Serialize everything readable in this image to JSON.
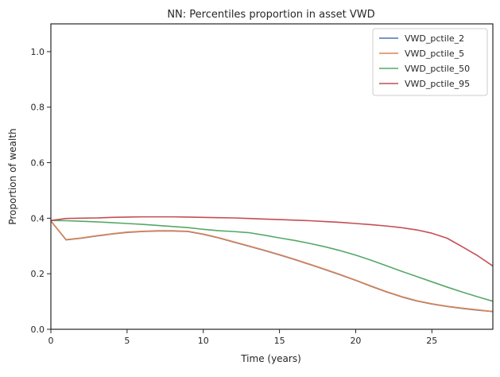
{
  "chart_data": {
    "type": "line",
    "title": "NN: Percentiles proportion in asset VWD",
    "xlabel": "Time (years)",
    "ylabel": "Proportion of wealth",
    "xlim": [
      0,
      29
    ],
    "ylim": [
      0,
      1.1
    ],
    "xticks": [
      0,
      5,
      10,
      15,
      20,
      25
    ],
    "yticks": [
      0.0,
      0.2,
      0.4,
      0.6,
      0.8,
      1.0
    ],
    "xtick_labels": [
      "0",
      "5",
      "10",
      "15",
      "20",
      "25"
    ],
    "ytick_labels": [
      "0.0",
      "0.2",
      "0.4",
      "0.6",
      "0.8",
      "1.0"
    ],
    "grid": false,
    "legend_position": "top-right",
    "x": [
      0,
      1,
      2,
      3,
      4,
      5,
      6,
      7,
      8,
      9,
      10,
      11,
      12,
      13,
      14,
      15,
      16,
      17,
      18,
      19,
      20,
      21,
      22,
      23,
      24,
      25,
      26,
      27,
      28,
      29
    ],
    "series": [
      {
        "name": "VWD_pctile_2",
        "color": "#4c72b0",
        "values": [
          0.39,
          0.322,
          0.328,
          0.336,
          0.343,
          0.349,
          0.352,
          0.354,
          0.354,
          0.352,
          0.342,
          0.329,
          0.314,
          0.299,
          0.284,
          0.268,
          0.251,
          0.233,
          0.215,
          0.196,
          0.176,
          0.155,
          0.135,
          0.117,
          0.102,
          0.091,
          0.082,
          0.075,
          0.069,
          0.064
        ]
      },
      {
        "name": "VWD_pctile_5",
        "color": "#dd8452",
        "values": [
          0.39,
          0.323,
          0.329,
          0.337,
          0.344,
          0.35,
          0.353,
          0.355,
          0.355,
          0.353,
          0.343,
          0.33,
          0.315,
          0.3,
          0.285,
          0.269,
          0.252,
          0.234,
          0.216,
          0.197,
          0.177,
          0.156,
          0.136,
          0.118,
          0.103,
          0.092,
          0.083,
          0.076,
          0.07,
          0.064
        ]
      },
      {
        "name": "VWD_pctile_50",
        "color": "#55a868",
        "values": [
          0.392,
          0.391,
          0.389,
          0.387,
          0.384,
          0.381,
          0.378,
          0.374,
          0.37,
          0.366,
          0.36,
          0.355,
          0.352,
          0.348,
          0.339,
          0.329,
          0.32,
          0.309,
          0.297,
          0.283,
          0.267,
          0.249,
          0.229,
          0.209,
          0.19,
          0.171,
          0.152,
          0.134,
          0.117,
          0.101
        ]
      },
      {
        "name": "VWD_pctile_95",
        "color": "#c44e52",
        "values": [
          0.392,
          0.399,
          0.4,
          0.401,
          0.403,
          0.404,
          0.405,
          0.405,
          0.405,
          0.404,
          0.403,
          0.402,
          0.401,
          0.399,
          0.397,
          0.395,
          0.393,
          0.391,
          0.388,
          0.385,
          0.381,
          0.377,
          0.372,
          0.366,
          0.358,
          0.346,
          0.328,
          0.297,
          0.265,
          0.228
        ]
      }
    ]
  }
}
